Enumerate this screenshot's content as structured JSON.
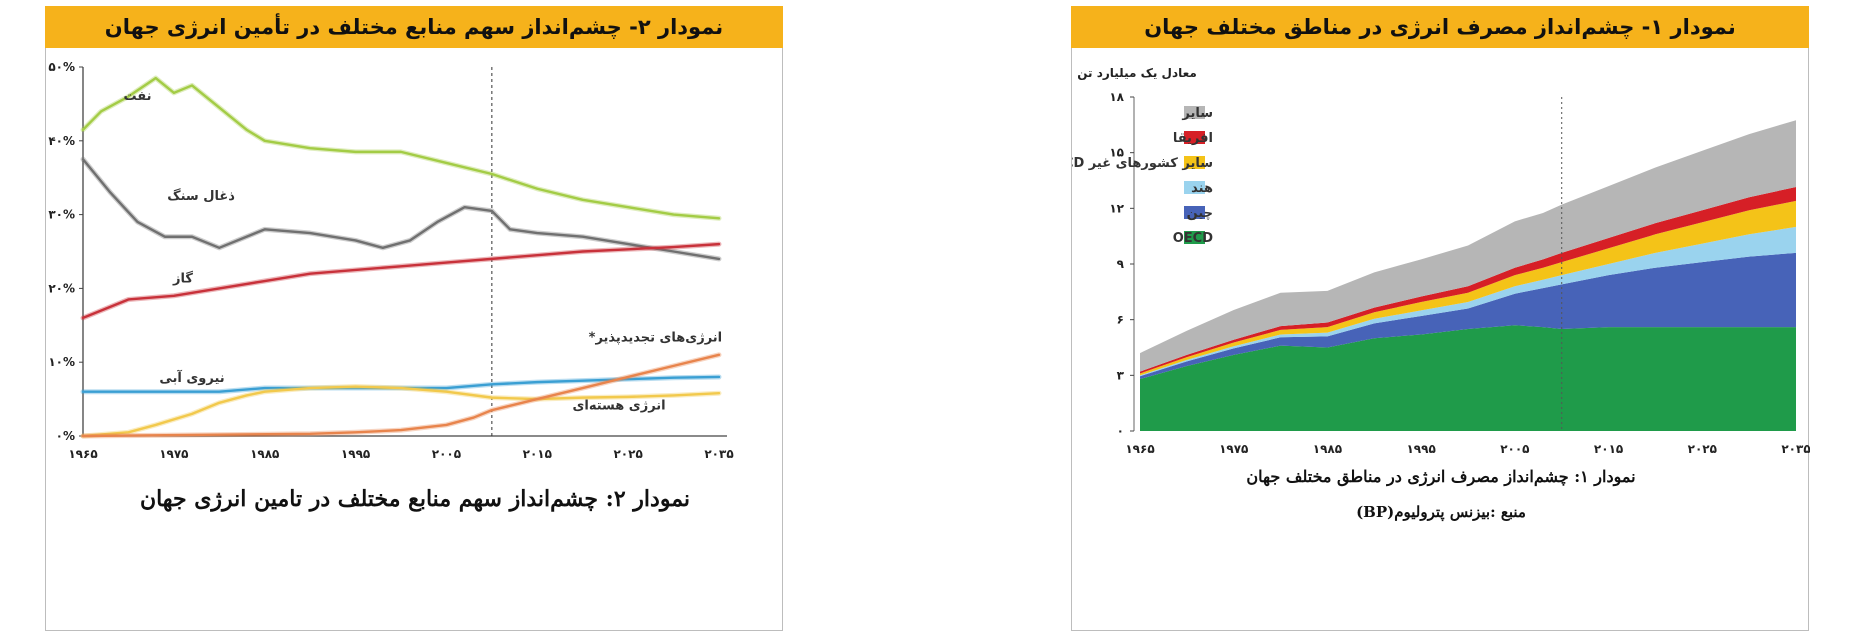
{
  "panel_left": {
    "header": "نمودار ۲- چشم‌انداز سهم منابع مختلف در تأمین انرژی جهان",
    "caption": "نمودار ۲: چشم‌انداز سهم منابع مختلف در تامین انرژی جهان"
  },
  "panel_right": {
    "header": "نمودار ۱- چشم‌انداز مصرف انرژی در مناطق مختلف جهان",
    "caption": "نمودار ۱: چشم‌انداز مصرف انرژی در مناطق مختلف جهان",
    "source": "منبع :بیزنس پترولیوم(BP)"
  },
  "colors": {
    "header_bg": "#f6b21b",
    "oil": "#a3cc45",
    "coal": "#707070",
    "gas": "#c8313a",
    "hydro": "#3a9fd3",
    "nuclear": "#f2c94c",
    "renewables": "#e8844c",
    "oecd": "#1f9b4a",
    "china": "#4763b8",
    "india": "#9ad3ee",
    "other_asia": "#f4c318",
    "africa": "#d61f26",
    "other": "#b6b6b6"
  },
  "chart_data": [
    {
      "type": "line",
      "id": "share",
      "ylim": [
        0,
        50
      ],
      "xlim": [
        1965,
        2035
      ],
      "divider_x": 2010,
      "x_ticks": [
        1965,
        1975,
        1985,
        1995,
        2005,
        2015,
        2025,
        2035
      ],
      "x_tick_labels": [
        "۱۹۶۵",
        "۱۹۷۵",
        "۱۹۸۵",
        "۱۹۹۵",
        "۲۰۰۵",
        "۲۰۱۵",
        "۲۰۲۵",
        "۲۰۳۵"
      ],
      "y_ticks": [
        0,
        10,
        20,
        30,
        40,
        50
      ],
      "y_tick_labels": [
        "۰%",
        "۱۰%",
        "۲۰%",
        "۳۰%",
        "۴۰%",
        "۵۰%"
      ],
      "series": [
        {
          "name": "نفت",
          "color_key": "oil",
          "x": [
            1965,
            1967,
            1970,
            1973,
            1975,
            1977,
            1980,
            1983,
            1985,
            1990,
            1995,
            2000,
            2005,
            2010,
            2015,
            2020,
            2025,
            2030,
            2035
          ],
          "y": [
            41.5,
            44,
            46,
            48.5,
            46.5,
            47.5,
            44.5,
            41.5,
            40,
            39,
            38.5,
            38.5,
            37,
            35.5,
            33.5,
            32,
            31,
            30,
            29.5
          ]
        },
        {
          "name": "ذغال سنگ",
          "color_key": "coal",
          "x": [
            1965,
            1968,
            1971,
            1974,
            1977,
            1980,
            1983,
            1985,
            1990,
            1995,
            1998,
            2001,
            2004,
            2007,
            2010,
            2012,
            2015,
            2020,
            2025,
            2030,
            2035
          ],
          "y": [
            37.5,
            33,
            29,
            27,
            27,
            25.5,
            27,
            28,
            27.5,
            26.5,
            25.5,
            26.5,
            29,
            31,
            30.5,
            28,
            27.5,
            27,
            26,
            25,
            24
          ]
        },
        {
          "name": "گاز",
          "color_key": "gas",
          "x": [
            1965,
            1970,
            1975,
            1980,
            1985,
            1990,
            1995,
            2000,
            2005,
            2010,
            2015,
            2020,
            2025,
            2030,
            2035
          ],
          "y": [
            16,
            18.5,
            19,
            20,
            21,
            22,
            22.5,
            23,
            23.5,
            24,
            24.5,
            25,
            25.3,
            25.6,
            26
          ]
        },
        {
          "name": "نیروی آبی",
          "color_key": "hydro",
          "x": [
            1965,
            1970,
            1975,
            1980,
            1985,
            1990,
            1995,
            2000,
            2005,
            2010,
            2015,
            2020,
            2025,
            2030,
            2035
          ],
          "y": [
            6,
            6,
            6,
            6,
            6.5,
            6.5,
            6.5,
            6.5,
            6.5,
            7,
            7.3,
            7.5,
            7.7,
            7.9,
            8
          ]
        },
        {
          "name": "انرژی هسته‌ای",
          "color_key": "nuclear",
          "x": [
            1965,
            1970,
            1973,
            1977,
            1980,
            1983,
            1985,
            1990,
            1995,
            2000,
            2005,
            2010,
            2015,
            2020,
            2025,
            2030,
            2035
          ],
          "y": [
            0,
            0.5,
            1.5,
            3,
            4.5,
            5.5,
            6,
            6.5,
            6.7,
            6.5,
            6,
            5.2,
            5,
            5.2,
            5.3,
            5.5,
            5.8
          ]
        },
        {
          "name": "انرژی‌های تجدیدپذیر*",
          "color_key": "renewables",
          "x": [
            1965,
            1990,
            1995,
            2000,
            2005,
            2008,
            2010,
            2015,
            2020,
            2025,
            2030,
            2035
          ],
          "y": [
            0,
            0.3,
            0.5,
            0.8,
            1.5,
            2.5,
            3.5,
            5,
            6.5,
            8,
            9.5,
            11
          ]
        }
      ]
    },
    {
      "type": "area",
      "id": "regions",
      "stacked": true,
      "ylabel": "معادل یک میلیارد تن نفت",
      "ylim": [
        0,
        18
      ],
      "xlim": [
        1965,
        2035
      ],
      "divider_x": 2010,
      "x": [
        1965,
        1970,
        1975,
        1980,
        1985,
        1990,
        1995,
        2000,
        2005,
        2008,
        2010,
        2015,
        2020,
        2025,
        2030,
        2035
      ],
      "x_ticks": [
        1965,
        1975,
        1985,
        1995,
        2005,
        2015,
        2025,
        2035
      ],
      "x_tick_labels": [
        "۱۹۶۵",
        "۱۹۷۵",
        "۱۹۸۵",
        "۱۹۹۵",
        "۲۰۰۵",
        "۲۰۱۵",
        "۲۰۲۵",
        "۲۰۳۵"
      ],
      "y_ticks": [
        0,
        3,
        6,
        9,
        12,
        15,
        18
      ],
      "y_tick_labels": [
        "۰",
        "۳",
        "۶",
        "۹",
        "۱۲",
        "۱۵",
        "۱۸"
      ],
      "series": [
        {
          "name": "OECD",
          "color_key": "oecd",
          "values": [
            2.8,
            3.5,
            4.1,
            4.6,
            4.5,
            5,
            5.2,
            5.5,
            5.7,
            5.6,
            5.5,
            5.6,
            5.6,
            5.6,
            5.6,
            5.6
          ]
        },
        {
          "name": "چین",
          "color_key": "china",
          "values": [
            0.15,
            0.25,
            0.35,
            0.45,
            0.6,
            0.8,
            1,
            1.1,
            1.7,
            2.1,
            2.4,
            2.8,
            3.2,
            3.5,
            3.8,
            4
          ]
        },
        {
          "name": "هند",
          "color_key": "india",
          "values": [
            0.05,
            0.08,
            0.12,
            0.15,
            0.2,
            0.25,
            0.3,
            0.35,
            0.4,
            0.45,
            0.5,
            0.6,
            0.8,
            1,
            1.2,
            1.4
          ]
        },
        {
          "name": "سایر کشورهای غیر OECD آسیایی",
          "color_key": "other_asia",
          "values": [
            0.1,
            0.15,
            0.2,
            0.25,
            0.3,
            0.35,
            0.45,
            0.5,
            0.6,
            0.65,
            0.7,
            0.85,
            1,
            1.15,
            1.3,
            1.4
          ]
        },
        {
          "name": "افریقا",
          "color_key": "africa",
          "values": [
            0.1,
            0.12,
            0.15,
            0.2,
            0.25,
            0.25,
            0.3,
            0.35,
            0.4,
            0.45,
            0.5,
            0.55,
            0.6,
            0.65,
            0.7,
            0.75
          ]
        },
        {
          "name": "سایر",
          "color_key": "other",
          "values": [
            1,
            1.3,
            1.6,
            1.8,
            1.7,
            1.9,
            2,
            2.2,
            2.5,
            2.5,
            2.6,
            2.8,
            3,
            3.2,
            3.4,
            3.6
          ]
        }
      ]
    }
  ]
}
